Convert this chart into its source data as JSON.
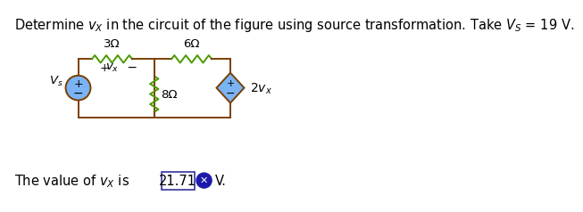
{
  "title_text": "Determine $v_X$ in the circuit of the figure using source transformation. Take $V_S$ = 19 V.",
  "answer_text": "The value of $v_X$ is",
  "answer_value": "21.71",
  "answer_unit": "V.",
  "bg_color": "#ffffff",
  "circuit_color": "#7B3F00",
  "resistor_color": "#4a9900",
  "source_circle_color": "#7ab4f5",
  "diamond_color": "#7ab4f5",
  "title_fontsize": 10.5,
  "answer_fontsize": 10.5,
  "label_fontsize": 10,
  "small_fontsize": 9
}
